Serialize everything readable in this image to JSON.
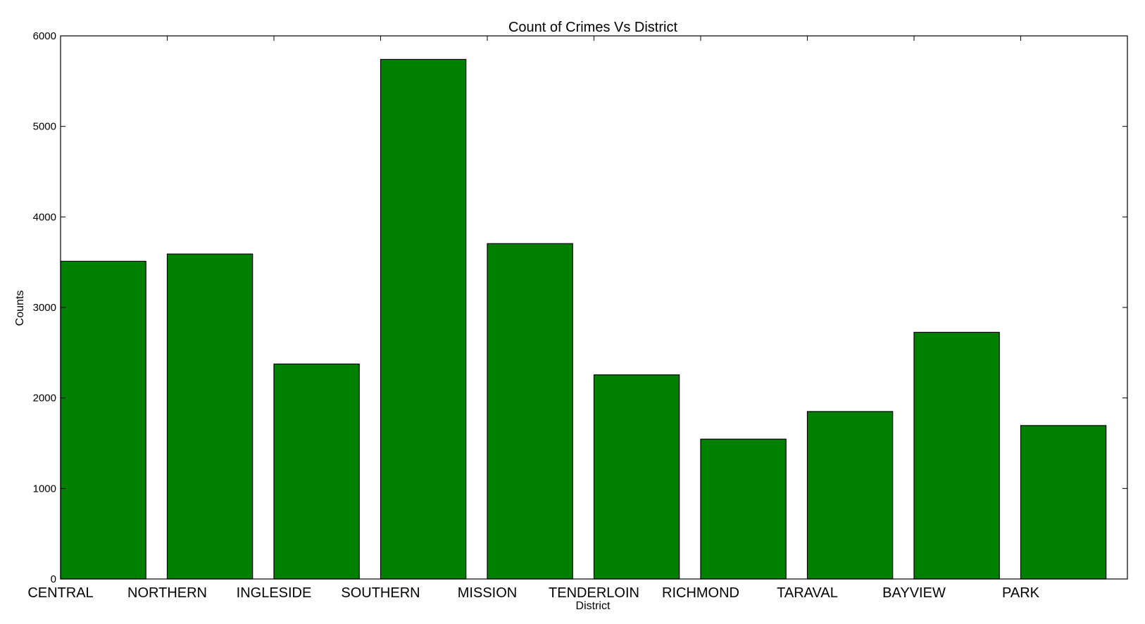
{
  "chart_data": {
    "type": "bar",
    "title": "Count of Crimes Vs District",
    "xlabel": "District",
    "ylabel": "Counts",
    "categories": [
      "CENTRAL",
      "NORTHERN",
      "INGLESIDE",
      "SOUTHERN",
      "MISSION",
      "TENDERLOIN",
      "RICHMOND",
      "TARAVAL",
      "BAYVIEW",
      "PARK"
    ],
    "values": [
      3510,
      3590,
      2375,
      5740,
      3705,
      2255,
      1545,
      1850,
      2725,
      1695
    ],
    "ylim": [
      0,
      6000
    ],
    "yticks": [
      0,
      1000,
      2000,
      3000,
      4000,
      5000,
      6000
    ],
    "grid": false,
    "bar_color": "#008000",
    "edge_color": "#000000"
  }
}
